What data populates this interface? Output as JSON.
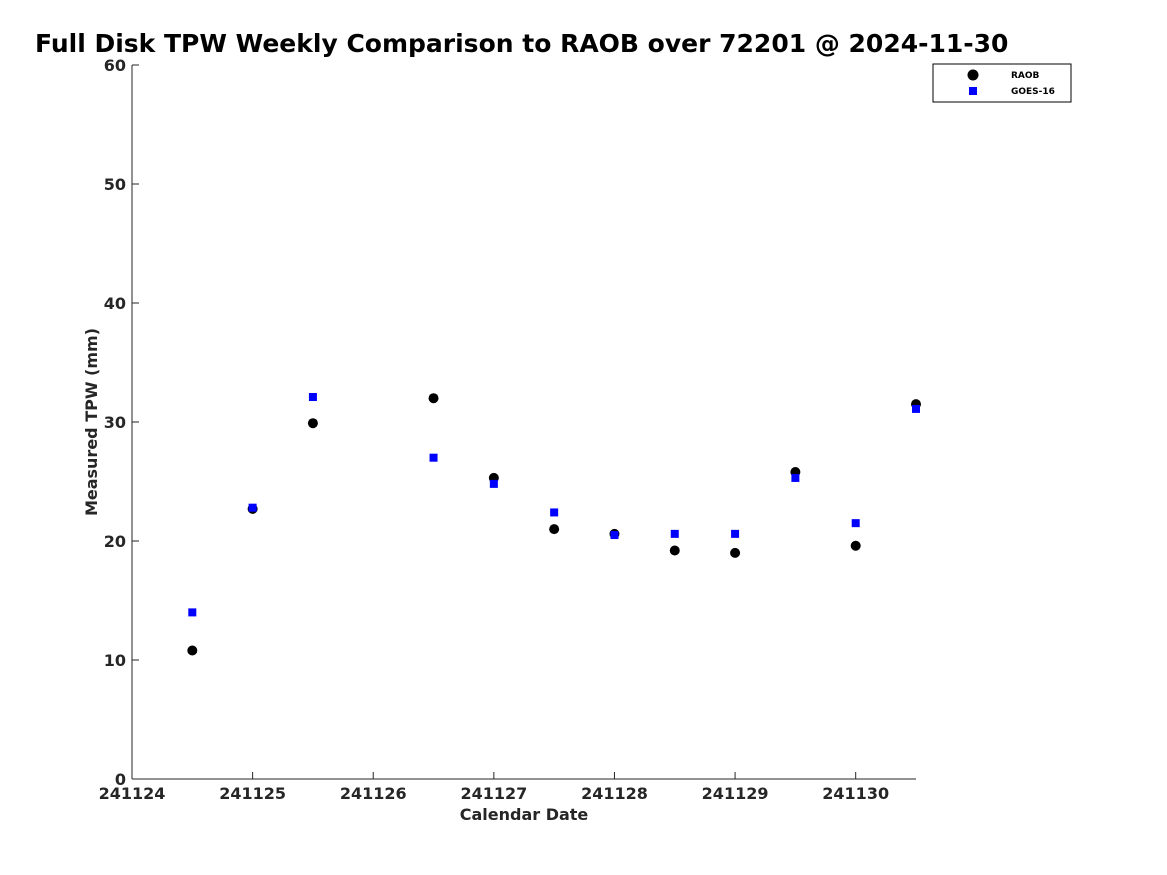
{
  "chart_data": {
    "type": "scatter",
    "title": "Full Disk TPW Weekly Comparison to RAOB over 72201 @ 2024-11-30",
    "xlabel": "Calendar Date",
    "ylabel": "Measured TPW (mm)",
    "x_ticks": [
      241124,
      241125,
      241126,
      241127,
      241128,
      241129,
      241130
    ],
    "xlim": [
      241124,
      241130.5
    ],
    "y_ticks": [
      0,
      10,
      20,
      30,
      40,
      50,
      60
    ],
    "ylim": [
      0,
      60
    ],
    "grid": false,
    "legend_position": "top-right",
    "series": [
      {
        "name": "RAOB",
        "color": "#000000",
        "marker": "circle",
        "points": [
          {
            "x": 241124.5,
            "y": 10.8
          },
          {
            "x": 241125.0,
            "y": 22.7
          },
          {
            "x": 241125.5,
            "y": 29.9
          },
          {
            "x": 241126.5,
            "y": 32.0
          },
          {
            "x": 241127.0,
            "y": 25.3
          },
          {
            "x": 241127.5,
            "y": 21.0
          },
          {
            "x": 241128.0,
            "y": 20.6
          },
          {
            "x": 241128.5,
            "y": 19.2
          },
          {
            "x": 241129.0,
            "y": 19.0
          },
          {
            "x": 241129.5,
            "y": 25.8
          },
          {
            "x": 241130.0,
            "y": 19.6
          },
          {
            "x": 241130.5,
            "y": 31.5
          }
        ]
      },
      {
        "name": "GOES-16",
        "color": "#0000ff",
        "marker": "square",
        "points": [
          {
            "x": 241124.5,
            "y": 14.0
          },
          {
            "x": 241125.0,
            "y": 22.8
          },
          {
            "x": 241125.5,
            "y": 32.1
          },
          {
            "x": 241126.5,
            "y": 27.0
          },
          {
            "x": 241127.0,
            "y": 24.8
          },
          {
            "x": 241127.5,
            "y": 22.4
          },
          {
            "x": 241128.0,
            "y": 20.5
          },
          {
            "x": 241128.5,
            "y": 20.6
          },
          {
            "x": 241129.0,
            "y": 20.6
          },
          {
            "x": 241129.5,
            "y": 25.3
          },
          {
            "x": 241130.0,
            "y": 21.5
          },
          {
            "x": 241130.5,
            "y": 31.1
          }
        ]
      }
    ]
  }
}
